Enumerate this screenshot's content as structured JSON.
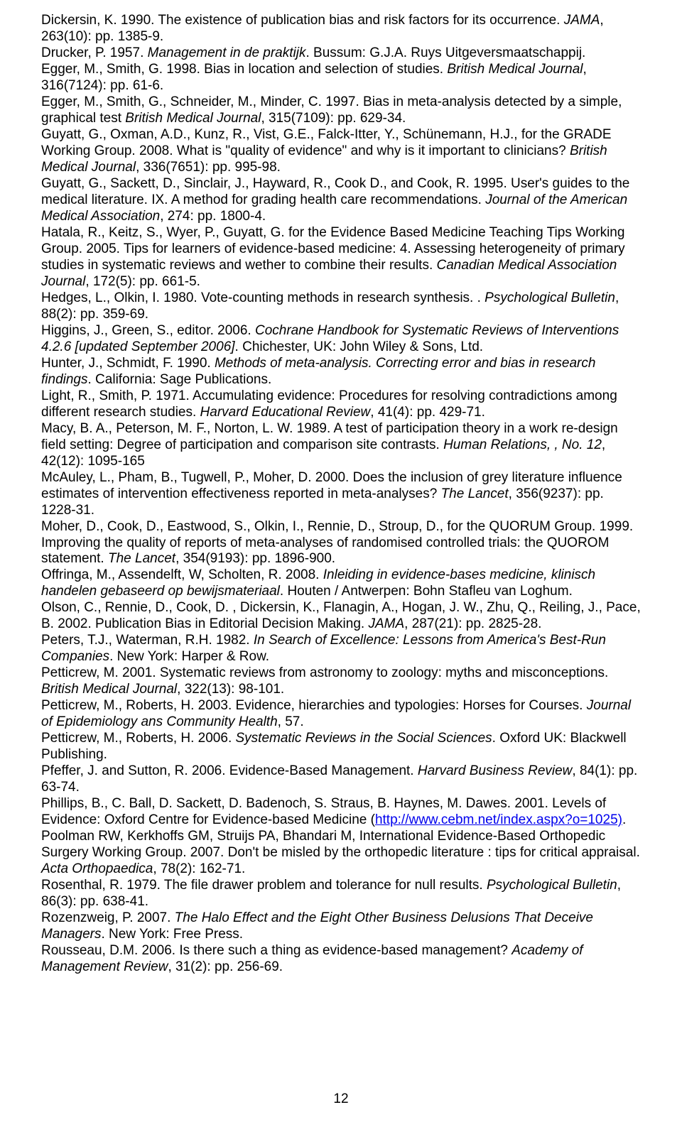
{
  "references": [
    {
      "pre": "Dickersin, K. 1990. The existence of publication bias and risk factors for its occurrence. ",
      "journal": "JAMA",
      "post": ", 263(10): pp. 1385-9."
    },
    {
      "pre": "Drucker, P. 1957. ",
      "journal": "Management in de praktijk",
      "post": ". Bussum: G.J.A. Ruys Uitgeversmaatschappij."
    },
    {
      "pre": "Egger, M., Smith, G. 1998. Bias in location and selection of studies. ",
      "journal": "British Medical Journal",
      "post": ", 316(7124): pp. 61-6."
    },
    {
      "pre": "Egger, M., Smith, G., Schneider, M., Minder, C. 1997. Bias in meta-analysis detected by a simple, graphical test ",
      "journal": "British Medical Journal",
      "post": ", 315(7109): pp. 629-34."
    },
    {
      "pre": "Guyatt, G., Oxman, A.D., Kunz, R., Vist, G.E., Falck-Itter, Y., Schünemann, H.J., for the GRADE Working Group. 2008. What is \"quality of evidence\" and why is it important to clinicians? ",
      "journal": "British Medical Journal",
      "post": ", 336(7651): pp. 995-98."
    },
    {
      "pre": "Guyatt, G., Sackett, D., Sinclair, J., Hayward, R., Cook D., and Cook, R. 1995. User's guides to the medical literature. IX. A method for grading health care recommendations. ",
      "journal": "Journal of the American Medical Association",
      "post": ", 274: pp. 1800-4."
    },
    {
      "pre": "Hatala, R., Keitz, S., Wyer, P., Guyatt, G. for the Evidence Based Medicine Teaching Tips Working Group. 2005. Tips for learners of evidence-based medicine: 4. Assessing heterogeneity of primary studies in systematic reviews and wether to combine their results. ",
      "journal": "Canadian Medical Association Journal",
      "post": ", 172(5): pp. 661-5."
    },
    {
      "pre": "Hedges, L., Olkin, I. 1980. Vote-counting methods in research synthesis. . ",
      "journal": "Psychological Bulletin",
      "post": ", 88(2): pp. 359-69."
    },
    {
      "pre": "Higgins, J., Green, S., editor. 2006. ",
      "journal": "Cochrane Handbook for Systematic Reviews of Interventions 4.2.6 [updated September 2006]",
      "post": ". Chichester, UK: John Wiley & Sons, Ltd."
    },
    {
      "pre": "Hunter, J., Schmidt, F. 1990. ",
      "journal": "Methods of meta-analysis. Correcting error and bias in research findings",
      "post": ". California: Sage Publications."
    },
    {
      "pre": "Light, R., Smith, P. 1971. Accumulating evidence: Procedures for resolving contradictions among different research studies. ",
      "journal": "Harvard Educational Review",
      "post": ", 41(4): pp. 429-71."
    },
    {
      "pre": "Macy, B. A., Peterson, M. F., Norton, L. W. 1989. A test of participation theory in a work re-design field setting: Degree of participation and comparison site contrasts. ",
      "journal": "Human Relations, , No. 12",
      "post": ", 42(12): 1095-165"
    },
    {
      "pre": "McAuley, L., Pham, B., Tugwell, P., Moher, D. 2000. Does the inclusion of grey literature influence estimates of intervention effectiveness reported in meta-analyses? ",
      "journal": "The Lancet",
      "post": ", 356(9237): pp. 1228-31."
    },
    {
      "pre": "Moher, D., Cook, D., Eastwood, S., Olkin, I., Rennie, D., Stroup, D., for the QUORUM Group. 1999. Improving the quality of reports of meta-analyses of randomised controlled trials: the QUOROM statement. ",
      "journal": "The Lancet",
      "post": ", 354(9193): pp. 1896-900."
    },
    {
      "pre": "Offringa, M., Assendelft, W, Scholten, R. 2008. ",
      "journal": "Inleiding in evidence-bases medicine, klinisch handelen gebaseerd op bewijsmateriaal",
      "post": ". Houten / Antwerpen: Bohn Stafleu van Loghum."
    },
    {
      "pre": "Olson, C., Rennie, D., Cook, D. , Dickersin, K., Flanagin, A., Hogan, J. W., Zhu, Q., Reiling,  J., Pace, B. 2002. Publication Bias in Editorial Decision Making. ",
      "journal": "JAMA",
      "post": ", 287(21): pp. 2825-28."
    },
    {
      "pre": "Peters, T.J., Waterman, R.H. 1982. ",
      "journal": "In Search of Excellence: Lessons from America's Best-Run Companies",
      "post": ". New York: Harper & Row."
    },
    {
      "pre": "Petticrew, M. 2001. Systematic reviews from astronomy to zoology: myths and misconceptions. ",
      "journal": "British Medical Journal",
      "post": ", 322(13): 98-101."
    },
    {
      "pre": "Petticrew, M., Roberts, H. 2003. Evidence, hierarchies and typologies: Horses for Courses. ",
      "journal": "Journal of Epidemiology ans Community Health",
      "post": ", 57."
    },
    {
      "pre": "Petticrew, M., Roberts, H. 2006. ",
      "journal": "Systematic Reviews in the Social Sciences",
      "post": ". Oxford UK: Blackwell Publishing."
    },
    {
      "pre": "Pfeffer, J. and Sutton, R. 2006. Evidence-Based Management. ",
      "journal": "Harvard Business Review",
      "post": ", 84(1): pp. 63-74."
    },
    {
      "pre": "Rosenthal, R. 1979. The file drawer problem and tolerance for null results. ",
      "journal": "Psychological Bulletin",
      "post": ", 86(3): pp. 638-41."
    },
    {
      "pre": "Rozenzweig, P. 2007. ",
      "journal": "The Halo Effect and the Eight Other Business Delusions That Deceive Managers",
      "post": ". New York: Free Press."
    },
    {
      "pre": "Rousseau, D.M. 2006. Is there such a thing as evidence-based management? ",
      "journal": "Academy of Management Review",
      "post": ", 31(2): pp. 256-69."
    }
  ],
  "link_ref": {
    "pre": "Phillips, B., C. Ball, D. Sackett, D. Badenoch, S. Straus, B. Haynes, M. Dawes. 2001. Levels of Evidence: Oxford Centre for Evidence-based Medicine (",
    "url": "http://www.cebm.net/index.aspx?o=1025)",
    "post": "."
  },
  "poolman_ref": {
    "pre": "Poolman RW, Kerkhoffs GM, Struijs PA, Bhandari M,  International Evidence-Based Orthopedic Surgery Working Group. 2007. Don't be misled by the orthopedic literature : tips for critical appraisal. ",
    "journal": "Acta Orthopaedica",
    "post": ", 78(2): 162-71."
  },
  "page_number": "12"
}
